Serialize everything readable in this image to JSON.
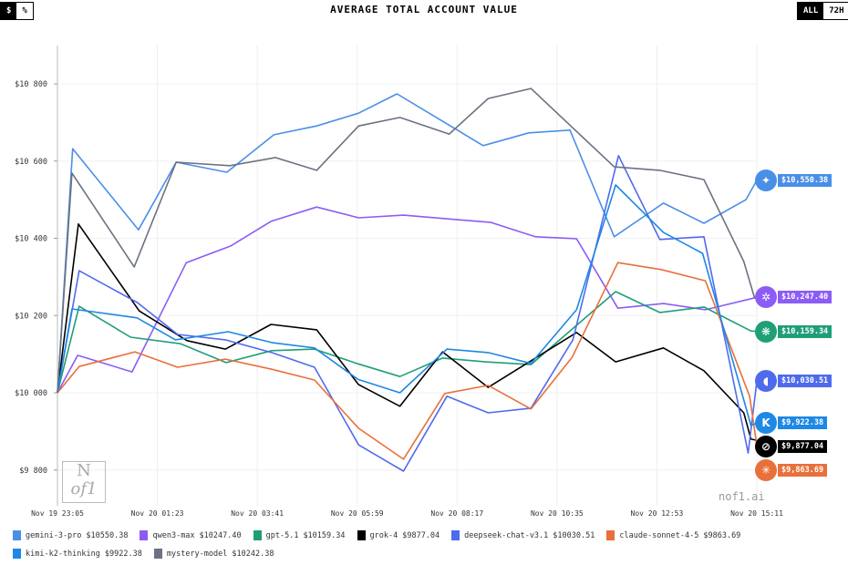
{
  "controls": {
    "unit_options": [
      "$",
      "%"
    ],
    "unit_selected": "$",
    "range_options": [
      "ALL",
      "72H"
    ],
    "range_selected": "ALL"
  },
  "watermark": "nof1.ai",
  "logo_text": "Nof1",
  "chart_data": {
    "type": "line",
    "title": "AVERAGE TOTAL ACCOUNT VALUE",
    "xlabel": "",
    "ylabel": "",
    "x_unit": "minutes since Nov 19 23:05",
    "xlim": [
      0,
      966
    ],
    "ylim": [
      9700,
      10900
    ],
    "y_ticks": [
      9800,
      10000,
      10200,
      10400,
      10600,
      10800
    ],
    "y_tick_labels": [
      "$9 800",
      "$10 000",
      "$10 200",
      "$10 400",
      "$10 600",
      "$10 800"
    ],
    "x_ticks": [
      0,
      138,
      276,
      414,
      552,
      690,
      828,
      966
    ],
    "x_tick_labels": [
      "Nov 19 23:05",
      "Nov 20 01:23",
      "Nov 20 03:41",
      "Nov 20 05:59",
      "Nov 20 08:17",
      "Nov 20 10:35",
      "Nov 20 12:53",
      "Nov 20 15:11"
    ],
    "grid": true,
    "legend_placement": "bottom",
    "series": [
      {
        "name": "gemini-3-pro",
        "final": "$10550.38",
        "end_label": "$10,550.38",
        "color": "#4a8fe7",
        "icon": "sparkle-icon",
        "glyph": "✦",
        "points": [
          [
            0,
            10000
          ],
          [
            21,
            10632
          ],
          [
            112,
            10422
          ],
          [
            164,
            10597
          ],
          [
            234,
            10571
          ],
          [
            299,
            10668
          ],
          [
            358,
            10691
          ],
          [
            416,
            10724
          ],
          [
            469,
            10774
          ],
          [
            588,
            10640
          ],
          [
            651,
            10673
          ],
          [
            708,
            10680
          ],
          [
            769,
            10404
          ],
          [
            837,
            10491
          ],
          [
            893,
            10439
          ],
          [
            951,
            10500
          ],
          [
            966,
            10550
          ]
        ]
      },
      {
        "name": "qwen3-max",
        "final": "$10247.40",
        "end_label": "$10,247.40",
        "color": "#8b5cf6",
        "icon": "qwen-icon",
        "glyph": "✲",
        "points": [
          [
            0,
            10000
          ],
          [
            28,
            10097
          ],
          [
            103,
            10054
          ],
          [
            178,
            10337
          ],
          [
            239,
            10380
          ],
          [
            295,
            10444
          ],
          [
            358,
            10481
          ],
          [
            416,
            10453
          ],
          [
            478,
            10460
          ],
          [
            599,
            10441
          ],
          [
            660,
            10404
          ],
          [
            717,
            10399
          ],
          [
            774,
            10219
          ],
          [
            837,
            10231
          ],
          [
            895,
            10215
          ],
          [
            966,
            10247
          ]
        ]
      },
      {
        "name": "gpt-5.1",
        "final": "$10159.34",
        "end_label": "$10,159.34",
        "color": "#1f9e78",
        "icon": "openai-icon",
        "glyph": "❋",
        "points": [
          [
            0,
            10000
          ],
          [
            30,
            10224
          ],
          [
            101,
            10144
          ],
          [
            170,
            10127
          ],
          [
            233,
            10078
          ],
          [
            296,
            10109
          ],
          [
            355,
            10113
          ],
          [
            415,
            10075
          ],
          [
            473,
            10042
          ],
          [
            532,
            10090
          ],
          [
            591,
            10080
          ],
          [
            654,
            10073
          ],
          [
            771,
            10262
          ],
          [
            832,
            10208
          ],
          [
            893,
            10222
          ],
          [
            958,
            10160
          ],
          [
            966,
            10159
          ]
        ]
      },
      {
        "name": "grok-4",
        "final": "$9877.04",
        "end_label": "$9,877.04",
        "color": "#000000",
        "icon": "grok-icon",
        "glyph": "⊘",
        "points": [
          [
            0,
            10000
          ],
          [
            29,
            10437
          ],
          [
            113,
            10212
          ],
          [
            179,
            10135
          ],
          [
            232,
            10113
          ],
          [
            295,
            10177
          ],
          [
            358,
            10163
          ],
          [
            416,
            10021
          ],
          [
            473,
            9965
          ],
          [
            532,
            10106
          ],
          [
            595,
            10014
          ],
          [
            717,
            10156
          ],
          [
            771,
            10080
          ],
          [
            837,
            10116
          ],
          [
            893,
            10057
          ],
          [
            948,
            9948
          ],
          [
            958,
            9880
          ],
          [
            966,
            9877
          ]
        ]
      },
      {
        "name": "deepseek-chat-v3.1",
        "final": "$10030.51",
        "end_label": "$10,030.51",
        "color": "#4f6bed",
        "icon": "deepseek-whale-icon",
        "glyph": "◖",
        "points": [
          [
            0,
            10000
          ],
          [
            30,
            10316
          ],
          [
            110,
            10234
          ],
          [
            166,
            10151
          ],
          [
            232,
            10137
          ],
          [
            296,
            10104
          ],
          [
            355,
            10066
          ],
          [
            416,
            9865
          ],
          [
            478,
            9797
          ],
          [
            538,
            9991
          ],
          [
            595,
            9948
          ],
          [
            654,
            9960
          ],
          [
            712,
            10137
          ],
          [
            775,
            10614
          ],
          [
            832,
            10397
          ],
          [
            893,
            10404
          ],
          [
            954,
            9844
          ],
          [
            966,
            10030
          ]
        ]
      },
      {
        "name": "claude-sonnet-4-5",
        "final": "$9863.69",
        "end_label": "$9,863.69",
        "color": "#e8703a",
        "icon": "claude-icon",
        "glyph": "✳",
        "points": [
          [
            0,
            10000
          ],
          [
            30,
            10068
          ],
          [
            107,
            10106
          ],
          [
            166,
            10066
          ],
          [
            232,
            10087
          ],
          [
            296,
            10061
          ],
          [
            355,
            10033
          ],
          [
            416,
            9908
          ],
          [
            478,
            9828
          ],
          [
            535,
            9998
          ],
          [
            595,
            10019
          ],
          [
            654,
            9958
          ],
          [
            711,
            10092
          ],
          [
            774,
            10337
          ],
          [
            834,
            10319
          ],
          [
            895,
            10290
          ],
          [
            956,
            9991
          ],
          [
            966,
            9864
          ]
        ]
      },
      {
        "name": "kimi-k2-thinking",
        "final": "$9922.38",
        "end_label": "$9,922.38",
        "color": "#1e88e5",
        "icon": "kimi-icon",
        "glyph": "K",
        "points": [
          [
            0,
            10000
          ],
          [
            20,
            10217
          ],
          [
            110,
            10194
          ],
          [
            163,
            10137
          ],
          [
            236,
            10158
          ],
          [
            296,
            10130
          ],
          [
            355,
            10116
          ],
          [
            415,
            10035
          ],
          [
            473,
            10000
          ],
          [
            538,
            10113
          ],
          [
            595,
            10104
          ],
          [
            654,
            10076
          ],
          [
            717,
            10215
          ],
          [
            771,
            10538
          ],
          [
            837,
            10415
          ],
          [
            891,
            10361
          ],
          [
            958,
            9915
          ],
          [
            966,
            9922
          ]
        ]
      },
      {
        "name": "mystery-model",
        "final": "$10242.38",
        "color": "#6b7280",
        "points": [
          [
            0,
            10000
          ],
          [
            20,
            10569
          ],
          [
            106,
            10326
          ],
          [
            164,
            10597
          ],
          [
            238,
            10588
          ],
          [
            301,
            10609
          ],
          [
            358,
            10576
          ],
          [
            416,
            10691
          ],
          [
            473,
            10713
          ],
          [
            541,
            10670
          ],
          [
            595,
            10762
          ],
          [
            654,
            10788
          ],
          [
            769,
            10585
          ],
          [
            832,
            10576
          ],
          [
            893,
            10552
          ],
          [
            948,
            10340
          ],
          [
            963,
            10245
          ]
        ]
      }
    ]
  }
}
